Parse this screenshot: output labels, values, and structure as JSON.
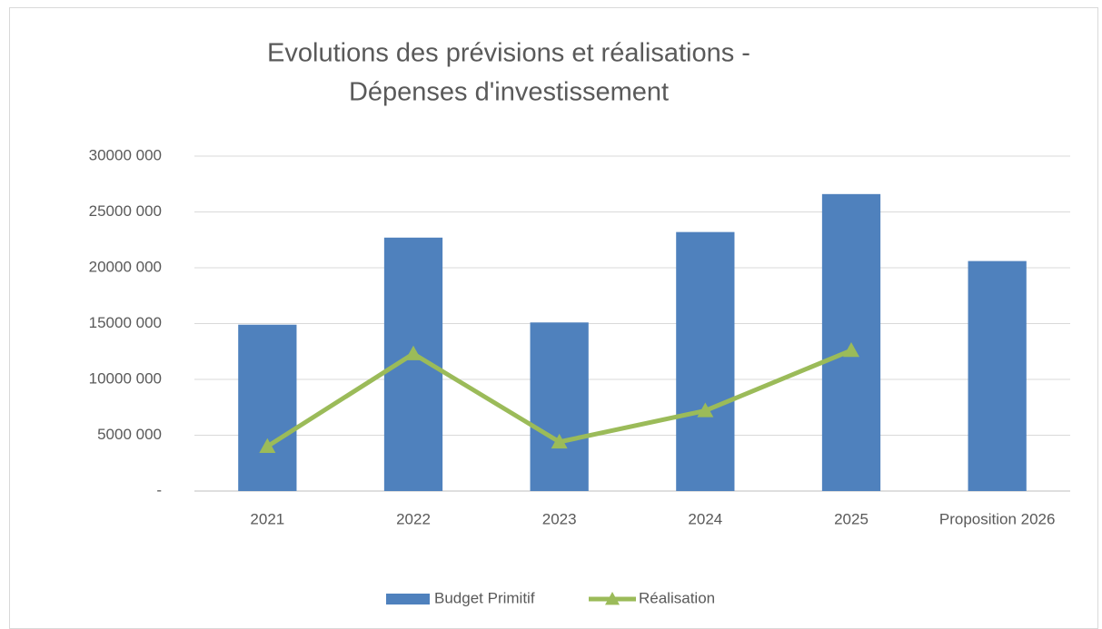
{
  "chart_data": {
    "type": "bar-line",
    "title": [
      "Evolutions des prévisions et réalisations -",
      "Dépenses d'investissement"
    ],
    "categories": [
      "2021",
      "2022",
      "2023",
      "2024",
      "2025",
      "Proposition 2026"
    ],
    "series": [
      {
        "name": "Budget Primitif",
        "type": "bar",
        "color": "#4f81bd",
        "values": [
          14900000,
          22700000,
          15100000,
          23200000,
          26600000,
          20600000
        ]
      },
      {
        "name": "Réalisation",
        "type": "line",
        "color": "#9bbb59",
        "marker": "triangle",
        "values": [
          4000000,
          12300000,
          4400000,
          7200000,
          12600000,
          null
        ]
      }
    ],
    "ylim": [
      0,
      30000000
    ],
    "yticks": [
      {
        "value": 0,
        "label": "-"
      },
      {
        "value": 5000000,
        "label": "5000 000"
      },
      {
        "value": 10000000,
        "label": "10000 000"
      },
      {
        "value": 15000000,
        "label": "15000 000"
      },
      {
        "value": 20000000,
        "label": "20000 000"
      },
      {
        "value": 25000000,
        "label": "25000 000"
      },
      {
        "value": 30000000,
        "label": "30000 000"
      }
    ],
    "grid": true,
    "legend": "bottom"
  }
}
